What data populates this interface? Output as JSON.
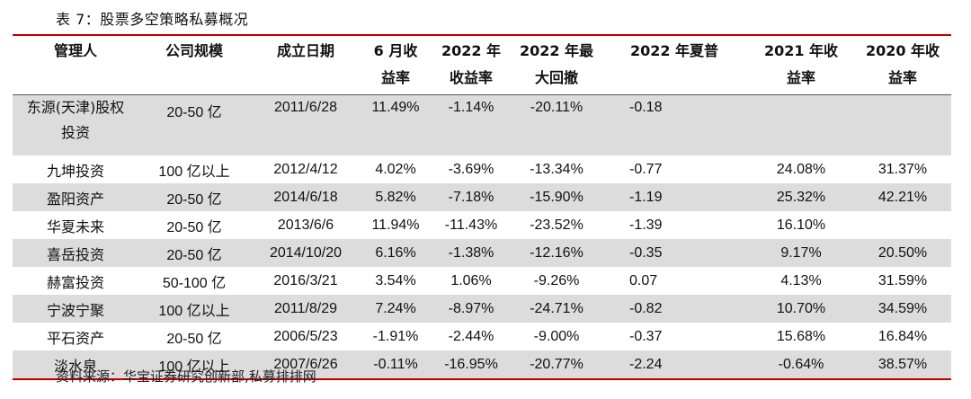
{
  "caption": "表 7：股票多空策略私募概况",
  "headers": [
    {
      "l1": "管理人",
      "l2": ""
    },
    {
      "l1": "公司规模",
      "l2": ""
    },
    {
      "l1": "成立日期",
      "l2": ""
    },
    {
      "l1": "6 月收",
      "l2": "益率"
    },
    {
      "l1": "2022 年",
      "l2": "收益率"
    },
    {
      "l1": "2022 年最",
      "l2": "大回撤"
    },
    {
      "l1": "2022 年夏普",
      "l2": ""
    },
    {
      "l1": "2021 年收",
      "l2": "益率"
    },
    {
      "l1": "2020 年收",
      "l2": "益率"
    }
  ],
  "rows": [
    {
      "name_l1": "东源(天津)股权",
      "name_l2": "投资",
      "scale": "20-50 亿",
      "date": "2011/6/28",
      "jun": "11.49%",
      "y2022": "-1.14%",
      "dd2022": "-20.11%",
      "sharpe": "-0.18",
      "y2021": "",
      "y2020": ""
    },
    {
      "name_l1": "九坤投资",
      "name_l2": "",
      "scale": "100 亿以上",
      "date": "2012/4/12",
      "jun": "4.02%",
      "y2022": "-3.69%",
      "dd2022": "-13.34%",
      "sharpe": "-0.77",
      "y2021": "24.08%",
      "y2020": "31.37%"
    },
    {
      "name_l1": "盈阳资产",
      "name_l2": "",
      "scale": "20-50 亿",
      "date": "2014/6/18",
      "jun": "5.82%",
      "y2022": "-7.18%",
      "dd2022": "-15.90%",
      "sharpe": "-1.19",
      "y2021": "25.32%",
      "y2020": "42.21%"
    },
    {
      "name_l1": "华夏未来",
      "name_l2": "",
      "scale": "20-50 亿",
      "date": "2013/6/6",
      "jun": "11.94%",
      "y2022": "-11.43%",
      "dd2022": "-23.52%",
      "sharpe": "-1.39",
      "y2021": "16.10%",
      "y2020": ""
    },
    {
      "name_l1": "喜岳投资",
      "name_l2": "",
      "scale": "20-50 亿",
      "date": "2014/10/20",
      "jun": "6.16%",
      "y2022": "-1.38%",
      "dd2022": "-12.16%",
      "sharpe": "-0.35",
      "y2021": "9.17%",
      "y2020": "20.50%"
    },
    {
      "name_l1": "赫富投资",
      "name_l2": "",
      "scale": "50-100 亿",
      "date": "2016/3/21",
      "jun": "3.54%",
      "y2022": "1.06%",
      "dd2022": "-9.26%",
      "sharpe": "0.07",
      "y2021": "4.13%",
      "y2020": "31.59%"
    },
    {
      "name_l1": "宁波宁聚",
      "name_l2": "",
      "scale": "100 亿以上",
      "date": "2011/8/29",
      "jun": "7.24%",
      "y2022": "-8.97%",
      "dd2022": "-24.71%",
      "sharpe": "-0.82",
      "y2021": "10.70%",
      "y2020": "34.59%"
    },
    {
      "name_l1": "平石资产",
      "name_l2": "",
      "scale": "20-50 亿",
      "date": "2006/5/23",
      "jun": "-1.91%",
      "y2022": "-2.44%",
      "dd2022": "-9.00%",
      "sharpe": "-0.37",
      "y2021": "15.68%",
      "y2020": "16.84%"
    },
    {
      "name_l1": "淡水泉",
      "name_l2": "",
      "scale": "100 亿以上",
      "date": "2007/6/26",
      "jun": "-0.11%",
      "y2022": "-16.95%",
      "dd2022": "-20.77%",
      "sharpe": "-2.24",
      "y2021": "-0.64%",
      "y2020": "38.57%"
    }
  ],
  "source": "资料来源：华宝证券研究创新部,私募排排网"
}
